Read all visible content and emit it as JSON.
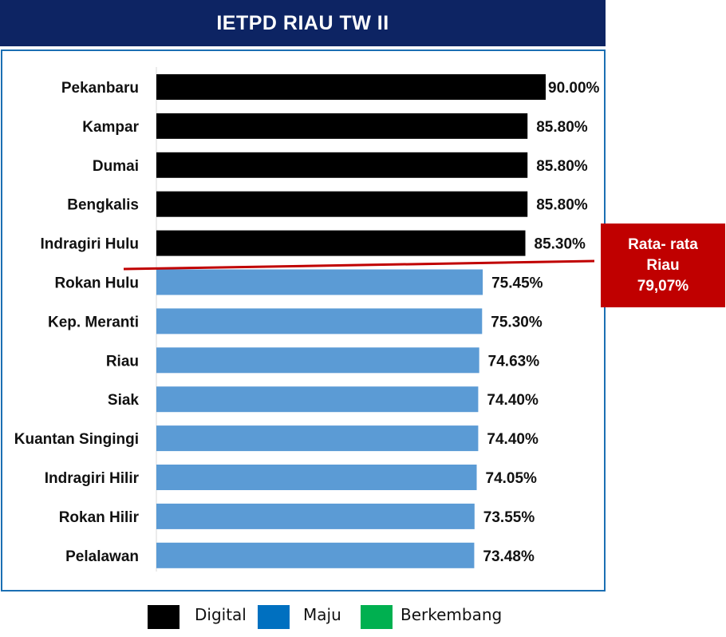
{
  "title": "IETPD RIAU TW II",
  "average_box": {
    "line1": "Rata- rata",
    "line2": "Riau",
    "line3": "79,07%"
  },
  "legend": [
    {
      "label": "Digital",
      "color": "#000000"
    },
    {
      "label": "Maju",
      "color": "#0070c0"
    },
    {
      "label": "Berkembang",
      "color": "#00b050"
    }
  ],
  "chart_data": {
    "type": "bar",
    "orientation": "horizontal",
    "title": "IETPD RIAU TW II",
    "xlabel": "",
    "ylabel": "",
    "grid": false,
    "legend_position": "bottom",
    "average_line": {
      "value": 79.07,
      "label": "Rata- rata Riau 79,07%",
      "color": "#c00000"
    },
    "colors": {
      "Digital": "#000000",
      "Maju": "#5b9bd5"
    },
    "categories": [
      "Pekanbaru",
      "Kampar",
      "Dumai",
      "Bengkalis",
      "Indragiri Hulu",
      "Rokan Hulu",
      "Kep. Meranti",
      "Riau",
      "Siak",
      "Kuantan Singingi",
      "Indragiri Hilir",
      "Rokan Hilir",
      "Pelalawan"
    ],
    "values": [
      90.0,
      85.8,
      85.8,
      85.8,
      85.3,
      75.45,
      75.3,
      74.63,
      74.4,
      74.4,
      74.05,
      73.55,
      73.48
    ],
    "value_labels": [
      "90.00%",
      "85.80%",
      "85.80%",
      "85.80%",
      "85.30%",
      "75.45%",
      "75.30%",
      "74.63%",
      "74.40%",
      "74.40%",
      "74.05%",
      "73.55%",
      "73.48%"
    ],
    "bar_groups": [
      "Digital",
      "Digital",
      "Digital",
      "Digital",
      "Digital",
      "Maju",
      "Maju",
      "Maju",
      "Maju",
      "Maju",
      "Maju",
      "Maju",
      "Maju"
    ]
  }
}
